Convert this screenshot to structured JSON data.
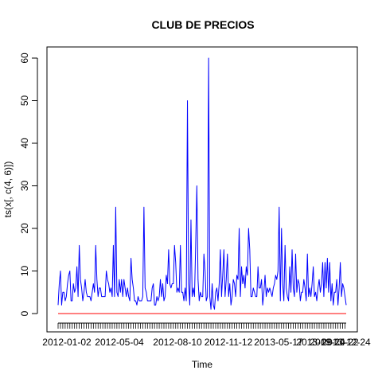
{
  "chart_data": {
    "type": "line",
    "title": "CLUB DE PRECIOS",
    "xlabel": "Time",
    "ylabel": "ts(x[, c(4, 6)])",
    "ylim": [
      0,
      60
    ],
    "y_ticks": [
      0,
      10,
      20,
      30,
      40,
      50,
      60
    ],
    "x_tick_labels": [
      "2012-01-02",
      "2012-05-04",
      "2012-08-10",
      "2012-11-12",
      "2013-05-17",
      "2013-09-24",
      "2013-10-22",
      "2013-12-24"
    ],
    "grid": false,
    "series": [
      {
        "color": "#0000ff",
        "values": [
          2,
          7,
          10,
          2,
          5,
          5,
          3,
          4,
          7,
          9,
          10,
          3,
          3,
          7,
          5,
          6,
          11,
          4,
          16,
          8,
          6,
          3,
          5,
          8,
          5,
          4,
          4,
          4,
          3,
          5,
          7,
          5,
          16,
          8,
          4,
          6,
          6,
          4,
          4,
          4,
          4,
          10,
          8,
          7,
          5,
          6,
          4,
          16,
          4,
          25,
          5,
          4,
          8,
          5,
          8,
          4,
          8,
          6,
          4,
          6,
          4,
          3,
          13,
          8,
          6,
          3,
          3,
          2,
          4,
          3,
          3,
          3,
          4,
          25,
          6,
          5,
          3,
          3,
          3,
          3,
          6,
          7,
          2,
          2,
          4,
          3,
          4,
          8,
          4,
          7,
          3,
          4,
          9,
          7,
          15,
          7,
          6,
          7,
          7,
          16,
          12,
          5,
          6,
          5,
          16,
          5,
          5,
          3,
          6,
          3,
          50,
          7,
          2,
          22,
          4,
          6,
          4,
          16,
          30,
          8,
          3,
          5,
          4,
          4,
          14,
          10,
          3,
          4,
          60,
          4,
          1,
          7,
          2,
          1,
          5,
          6,
          3,
          7,
          15,
          4,
          9,
          15,
          4,
          8,
          14,
          4,
          7,
          2,
          4,
          8,
          7,
          4,
          9,
          8,
          20,
          4,
          11,
          7,
          9,
          6,
          11,
          9,
          20,
          15,
          4,
          4,
          6,
          5,
          4,
          4,
          11,
          6,
          6,
          8,
          2,
          5,
          9,
          4,
          6,
          5,
          6,
          5,
          4,
          6,
          7,
          9,
          8,
          10,
          25,
          3,
          20,
          7,
          3,
          16,
          6,
          4,
          3,
          11,
          5,
          15,
          6,
          4,
          14,
          5,
          8,
          7,
          3,
          5,
          5,
          8,
          6,
          3,
          14,
          4,
          6,
          4,
          7,
          11,
          4,
          5,
          3,
          6,
          8,
          5,
          7,
          12,
          4,
          12,
          6,
          13,
          5,
          12,
          3,
          7,
          2,
          5,
          5,
          8,
          2,
          6,
          12,
          4,
          7,
          6,
          4,
          2
        ]
      },
      {
        "color": "#ff0000",
        "values": [
          0,
          0
        ]
      }
    ]
  }
}
